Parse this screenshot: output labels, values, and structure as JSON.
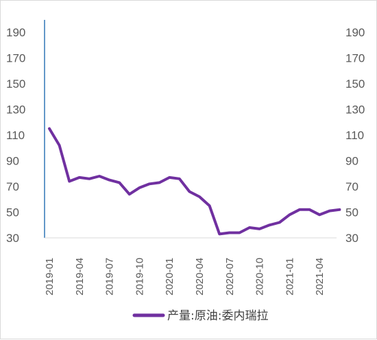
{
  "chart_data": {
    "type": "line",
    "title": "",
    "xlabel": "",
    "ylabel": "",
    "ylim": [
      30,
      200
    ],
    "yticks": [
      30,
      50,
      70,
      90,
      110,
      130,
      150,
      170,
      190
    ],
    "y2ticks": [
      30,
      50,
      70,
      90,
      110,
      130,
      150,
      170,
      190
    ],
    "x_labels": [
      "2019-01",
      "2019-04",
      "2019-07",
      "2019-10",
      "2020-01",
      "2020-04",
      "2020-07",
      "2020-10",
      "2021-01",
      "2021-04"
    ],
    "grid": false,
    "legend_position": "bottom",
    "series": [
      {
        "name": "产量:原油:委内瑞拉",
        "color": "#7030a0",
        "x": [
          "2019-01",
          "2019-02",
          "2019-03",
          "2019-04",
          "2019-05",
          "2019-06",
          "2019-07",
          "2019-08",
          "2019-09",
          "2019-10",
          "2019-11",
          "2019-12",
          "2020-01",
          "2020-02",
          "2020-03",
          "2020-04",
          "2020-05",
          "2020-06",
          "2020-07",
          "2020-08",
          "2020-09",
          "2020-10",
          "2020-11",
          "2020-12",
          "2021-01",
          "2021-02",
          "2021-03",
          "2021-04",
          "2021-05",
          "2021-06"
        ],
        "values": [
          115,
          102,
          74,
          77,
          76,
          78,
          75,
          73,
          64,
          69,
          72,
          73,
          77,
          76,
          66,
          62,
          55,
          33,
          34,
          34,
          38,
          37,
          40,
          42,
          48,
          52,
          52,
          48,
          51,
          52
        ]
      }
    ]
  }
}
